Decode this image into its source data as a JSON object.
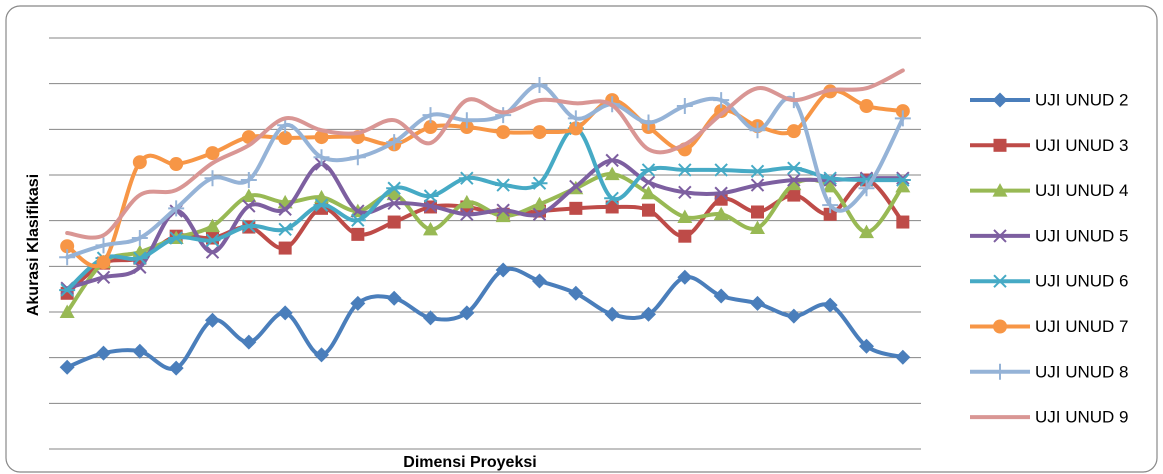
{
  "chart_data": {
    "type": "line",
    "x_label": "Dimensi Proyeksi",
    "y_label": "Akurasi Klasifikasi",
    "categories": [
      null,
      null,
      null,
      null,
      null,
      null,
      null,
      null,
      null,
      null,
      null,
      null,
      null,
      null,
      null,
      null,
      null,
      null,
      null,
      null,
      null,
      null,
      null,
      null
    ],
    "ylim": [
      0,
      9
    ],
    "yticks": [
      0,
      1,
      2,
      3,
      4,
      5,
      6,
      7,
      8,
      9
    ],
    "grid": true,
    "smooth": true,
    "legend": "right",
    "series": [
      {
        "name": "UJI UNUD 2",
        "color": "#4a7ebb",
        "marker": "diamond",
        "values": [
          1.79,
          2.1,
          2.14,
          1.77,
          2.82,
          2.34,
          2.98,
          2.06,
          3.19,
          3.3,
          2.87,
          2.98,
          3.92,
          3.68,
          3.41,
          2.95,
          2.95,
          3.76,
          3.35,
          3.19,
          2.91,
          3.15,
          2.25,
          2.01
        ]
      },
      {
        "name": "UJI UNUD 3",
        "color": "#be4b48",
        "marker": "square",
        "values": [
          3.41,
          4.07,
          4.18,
          4.66,
          4.62,
          4.86,
          4.4,
          5.27,
          4.7,
          4.97,
          5.3,
          5.3,
          5.14,
          5.21,
          5.27,
          5.3,
          5.23,
          4.66,
          5.47,
          5.19,
          5.56,
          5.14,
          5.89,
          4.97
        ]
      },
      {
        "name": "UJI UNUD 4",
        "color": "#98b954",
        "marker": "triangle",
        "values": [
          3.0,
          4.09,
          4.31,
          4.62,
          4.88,
          5.54,
          5.4,
          5.51,
          5.21,
          5.58,
          4.81,
          5.4,
          5.1,
          5.36,
          5.71,
          6.02,
          5.6,
          5.08,
          5.14,
          4.84,
          5.8,
          5.75,
          4.75,
          5.75
        ]
      },
      {
        "name": "UJI UNUD 5",
        "color": "#7d5fa0",
        "marker": "x",
        "values": [
          3.52,
          3.76,
          3.98,
          5.21,
          4.31,
          5.32,
          5.25,
          6.24,
          5.21,
          5.38,
          5.32,
          5.14,
          5.23,
          5.14,
          5.75,
          6.32,
          5.84,
          5.62,
          5.6,
          5.78,
          5.89,
          5.89,
          5.93,
          5.93
        ]
      },
      {
        "name": "UJI UNUD 6",
        "color": "#46aac5",
        "marker": "star",
        "values": [
          3.48,
          4.18,
          4.18,
          4.62,
          4.57,
          4.88,
          4.81,
          5.34,
          5.01,
          5.71,
          5.54,
          5.93,
          5.78,
          5.82,
          7.02,
          5.49,
          6.11,
          6.11,
          6.11,
          6.08,
          6.15,
          5.93,
          5.89,
          5.89
        ]
      },
      {
        "name": "UJI UNUD 7",
        "color": "#f79646",
        "marker": "circle",
        "values": [
          4.44,
          4.09,
          6.28,
          6.24,
          6.48,
          6.83,
          6.81,
          6.83,
          6.83,
          6.67,
          7.05,
          7.05,
          6.94,
          6.94,
          7.02,
          7.64,
          7.05,
          6.56,
          7.4,
          7.07,
          6.96,
          7.83,
          7.51,
          7.4
        ]
      },
      {
        "name": "UJI UNUD 8",
        "color": "#95b3d7",
        "marker": "plus",
        "values": [
          4.2,
          4.46,
          4.62,
          5.27,
          5.93,
          5.89,
          7.09,
          6.39,
          6.39,
          6.72,
          7.31,
          7.2,
          7.31,
          7.97,
          7.24,
          7.55,
          7.15,
          7.51,
          7.64,
          6.98,
          7.64,
          5.34,
          5.71,
          7.24
        ]
      },
      {
        "name": "UJI UNUD 9",
        "color": "#d99694",
        "marker": "none",
        "values": [
          4.73,
          4.68,
          5.56,
          5.67,
          6.26,
          6.65,
          7.24,
          6.98,
          6.92,
          7.2,
          6.7,
          7.64,
          7.37,
          7.64,
          7.57,
          7.53,
          6.56,
          6.67,
          7.33,
          7.9,
          7.64,
          7.86,
          7.9,
          8.29
        ]
      }
    ]
  }
}
